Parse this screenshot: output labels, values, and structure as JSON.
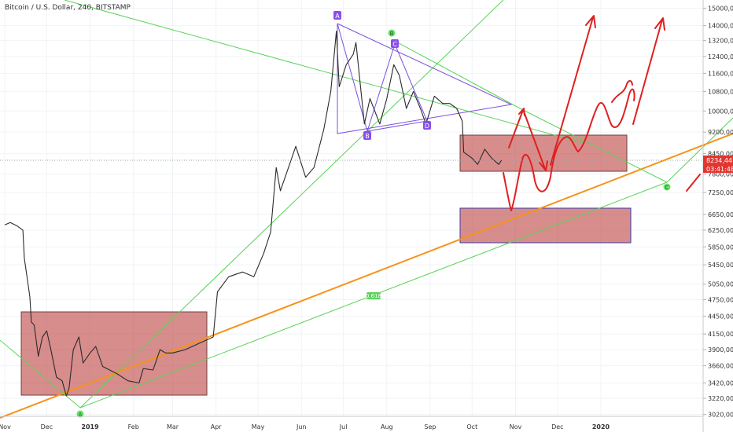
{
  "chart_data": {
    "type": "line",
    "title": "Bitcoin / U.S. Dollar, 240, BITSTAMP",
    "y_axis": {
      "scale": "log",
      "ylim": [
        2880,
        15300
      ],
      "tick_labels": [
        "15000,00",
        "14000,00",
        "13200,00",
        "12400,00",
        "11600,00",
        "10800,00",
        "10000,00",
        "9200,00",
        "8450,00",
        "7800,00",
        "7250,00",
        "6650,00",
        "6250,00",
        "5850,00",
        "5450,00",
        "5050,00",
        "4750,00",
        "4450,00",
        "4150,00",
        "3900,00",
        "3660,00",
        "3420,00",
        "3220,00",
        "3020,00"
      ]
    },
    "x_axis": {
      "tick_labels": [
        "Nov",
        "Dec",
        "2019",
        "Feb",
        "Mar",
        "Apr",
        "May",
        "Jun",
        "Jul",
        "Aug",
        "Sep",
        "Oct",
        "Nov",
        "Dec",
        "2020"
      ]
    },
    "last_price": "8234,44",
    "countdown": "03:41:48",
    "series": [
      {
        "values": [
          [
            "2018-11-01",
            6380
          ],
          [
            "2018-11-05",
            6440
          ],
          [
            "2018-11-10",
            6350
          ],
          [
            "2018-11-14",
            6250
          ],
          [
            "2018-11-15",
            5600
          ],
          [
            "2018-11-19",
            4800
          ],
          [
            "2018-11-20",
            4350
          ],
          [
            "2018-11-22",
            4300
          ],
          [
            "2018-11-25",
            3800
          ],
          [
            "2018-11-28",
            4100
          ],
          [
            "2018-12-01",
            4200
          ],
          [
            "2018-12-04",
            3900
          ],
          [
            "2018-12-08",
            3500
          ],
          [
            "2018-12-12",
            3450
          ],
          [
            "2018-12-15",
            3250
          ],
          [
            "2018-12-17",
            3350
          ],
          [
            "2018-12-20",
            3900
          ],
          [
            "2018-12-24",
            4100
          ],
          [
            "2018-12-27",
            3700
          ],
          [
            "2019-01-01",
            3850
          ],
          [
            "2019-01-05",
            3950
          ],
          [
            "2019-01-10",
            3650
          ],
          [
            "2019-01-15",
            3600
          ],
          [
            "2019-01-20",
            3550
          ],
          [
            "2019-01-28",
            3450
          ],
          [
            "2019-02-05",
            3420
          ],
          [
            "2019-02-08",
            3620
          ],
          [
            "2019-02-15",
            3600
          ],
          [
            "2019-02-20",
            3900
          ],
          [
            "2019-02-24",
            3850
          ],
          [
            "2019-03-01",
            3850
          ],
          [
            "2019-03-10",
            3900
          ],
          [
            "2019-03-20",
            4000
          ],
          [
            "2019-03-30",
            4100
          ],
          [
            "2019-04-02",
            4900
          ],
          [
            "2019-04-10",
            5200
          ],
          [
            "2019-04-20",
            5300
          ],
          [
            "2019-04-28",
            5200
          ],
          [
            "2019-05-05",
            5700
          ],
          [
            "2019-05-10",
            6200
          ],
          [
            "2019-05-14",
            8000
          ],
          [
            "2019-05-17",
            7300
          ],
          [
            "2019-05-22",
            7900
          ],
          [
            "2019-05-28",
            8700
          ],
          [
            "2019-06-04",
            7700
          ],
          [
            "2019-06-10",
            8000
          ],
          [
            "2019-06-17",
            9300
          ],
          [
            "2019-06-22",
            10800
          ],
          [
            "2019-06-26",
            13700
          ],
          [
            "2019-06-28",
            11000
          ],
          [
            "2019-07-03",
            12000
          ],
          [
            "2019-07-08",
            12500
          ],
          [
            "2019-07-10",
            13100
          ],
          [
            "2019-07-16",
            9500
          ],
          [
            "2019-07-20",
            10500
          ],
          [
            "2019-07-27",
            9500
          ],
          [
            "2019-08-01",
            10500
          ],
          [
            "2019-08-06",
            12000
          ],
          [
            "2019-08-10",
            11500
          ],
          [
            "2019-08-15",
            10100
          ],
          [
            "2019-08-20",
            10800
          ],
          [
            "2019-08-25",
            10100
          ],
          [
            "2019-08-29",
            9500
          ],
          [
            "2019-09-04",
            10600
          ],
          [
            "2019-09-10",
            10300
          ],
          [
            "2019-09-15",
            10300
          ],
          [
            "2019-09-20",
            10100
          ],
          [
            "2019-09-24",
            9600
          ],
          [
            "2019-09-25",
            8500
          ],
          [
            "2019-10-01",
            8300
          ],
          [
            "2019-10-05",
            8100
          ],
          [
            "2019-10-10",
            8600
          ],
          [
            "2019-10-15",
            8300
          ],
          [
            "2019-10-20",
            8100
          ],
          [
            "2019-10-22",
            8234
          ]
        ]
      }
    ],
    "annotations": {
      "harmonic_labels": [
        "A",
        "B",
        "C",
        "D"
      ],
      "wave_labels": [
        "A",
        "B",
        "C"
      ],
      "fib_label": "0.618"
    }
  }
}
